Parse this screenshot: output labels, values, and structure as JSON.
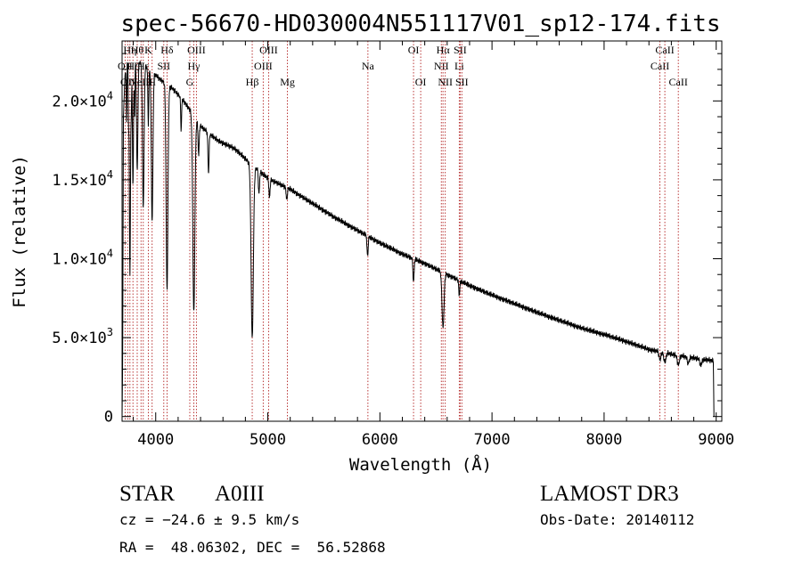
{
  "chart_data": {
    "type": "line",
    "title": "spec-56670-HD030004N551117V01_sp12-174.fits",
    "xlabel": "Wavelength (Å)",
    "ylabel": "Flux (relative)",
    "xlim": [
      3700,
      9050
    ],
    "ylim": [
      -300,
      23800
    ],
    "x_ticks": [
      {
        "value": 4000,
        "label": "4000"
      },
      {
        "value": 5000,
        "label": "5000"
      },
      {
        "value": 6000,
        "label": "6000"
      },
      {
        "value": 7000,
        "label": "7000"
      },
      {
        "value": 8000,
        "label": "8000"
      },
      {
        "value": 9000,
        "label": "9000"
      }
    ],
    "y_ticks": [
      {
        "value": 0,
        "base": "0",
        "exp": ""
      },
      {
        "value": 5000,
        "base": "5.0×10",
        "exp": "3"
      },
      {
        "value": 10000,
        "base": "1.0×10",
        "exp": "4"
      },
      {
        "value": 15000,
        "base": "1.5×10",
        "exp": "4"
      },
      {
        "value": 20000,
        "base": "2.0×10",
        "exp": "4"
      }
    ],
    "continuum": [
      [
        3700,
        0
      ],
      [
        3705,
        3200
      ],
      [
        3712,
        19000
      ],
      [
        3725,
        21500
      ],
      [
        3760,
        23000
      ],
      [
        3850,
        22500
      ],
      [
        3950,
        22000
      ],
      [
        4050,
        21300
      ],
      [
        4150,
        20800
      ],
      [
        4250,
        20000
      ],
      [
        4400,
        18400
      ],
      [
        4550,
        17500
      ],
      [
        4700,
        17000
      ],
      [
        4850,
        16000
      ],
      [
        5000,
        15100
      ],
      [
        5200,
        14400
      ],
      [
        5400,
        13500
      ],
      [
        5600,
        12600
      ],
      [
        5800,
        11800
      ],
      [
        6000,
        11000
      ],
      [
        6200,
        10300
      ],
      [
        6400,
        9700
      ],
      [
        6600,
        9000
      ],
      [
        6800,
        8300
      ],
      [
        7000,
        7700
      ],
      [
        7200,
        7150
      ],
      [
        7400,
        6600
      ],
      [
        7600,
        6100
      ],
      [
        7800,
        5600
      ],
      [
        8000,
        5200
      ],
      [
        8200,
        4750
      ],
      [
        8400,
        4250
      ],
      [
        8600,
        3950
      ],
      [
        8800,
        3700
      ],
      [
        8960,
        3550
      ],
      [
        8975,
        3500
      ],
      [
        8980,
        0
      ]
    ],
    "absorption": [
      [
        3770,
        14000,
        5
      ],
      [
        3797,
        8000,
        5
      ],
      [
        3835,
        7000,
        6
      ],
      [
        3889,
        9000,
        7
      ],
      [
        3934,
        3500,
        4
      ],
      [
        3968,
        9500,
        7
      ],
      [
        4101,
        13000,
        8
      ],
      [
        4227,
        2000,
        4
      ],
      [
        4340,
        12500,
        9
      ],
      [
        4383,
        2000,
        5
      ],
      [
        4471,
        2500,
        5
      ],
      [
        4861,
        11000,
        10
      ],
      [
        4921,
        1500,
        5
      ],
      [
        5015,
        1200,
        5
      ],
      [
        5169,
        800,
        5
      ],
      [
        5890,
        1300,
        5
      ],
      [
        6300,
        1500,
        5
      ],
      [
        6563,
        3500,
        9
      ],
      [
        6708,
        900,
        5
      ],
      [
        8498,
        500,
        8
      ],
      [
        8542,
        600,
        9
      ],
      [
        8662,
        600,
        9
      ],
      [
        8750,
        400,
        8
      ],
      [
        8863,
        400,
        8
      ]
    ],
    "noise_amplitude": 150,
    "line_markers": [
      {
        "wavelength": 3727,
        "label": "OII",
        "row": 1
      },
      {
        "wavelength": 3750,
        "label": "OII",
        "row": 2
      },
      {
        "wavelength": 3770,
        "label": "Hη",
        "row": 0
      },
      {
        "wavelength": 3797,
        "label": "Hζ",
        "row": 1
      },
      {
        "wavelength": 3835,
        "label": "Hθ",
        "row": 0
      },
      {
        "wavelength": 3869,
        "label": "NeIII",
        "row": 2
      },
      {
        "wavelength": 3889,
        "label": "Hε",
        "row": 1
      },
      {
        "wavelength": 3934,
        "label": "K",
        "row": 0
      },
      {
        "wavelength": 3968,
        "label": "H",
        "row": 2
      },
      {
        "wavelength": 4072,
        "label": "SII",
        "row": 1
      },
      {
        "wavelength": 4101,
        "label": "Hδ",
        "row": 0
      },
      {
        "wavelength": 4304,
        "label": "G",
        "row": 2
      },
      {
        "wavelength": 4340,
        "label": "Hγ",
        "row": 1
      },
      {
        "wavelength": 4363,
        "label": "OIII",
        "row": 0
      },
      {
        "wavelength": 4861,
        "label": "Hβ",
        "row": 2
      },
      {
        "wavelength": 4959,
        "label": "OIII",
        "row": 1
      },
      {
        "wavelength": 5007,
        "label": "OIII",
        "row": 0
      },
      {
        "wavelength": 5175,
        "label": "Mg",
        "row": 2
      },
      {
        "wavelength": 5893,
        "label": "Na",
        "row": 1
      },
      {
        "wavelength": 6300,
        "label": "OI",
        "row": 0
      },
      {
        "wavelength": 6364,
        "label": "OI",
        "row": 2
      },
      {
        "wavelength": 6548,
        "label": "NII",
        "row": 1
      },
      {
        "wavelength": 6563,
        "label": "Hα",
        "row": 0
      },
      {
        "wavelength": 6583,
        "label": "NII",
        "row": 2
      },
      {
        "wavelength": 6708,
        "label": "Li",
        "row": 1
      },
      {
        "wavelength": 6716,
        "label": "SII",
        "row": 0
      },
      {
        "wavelength": 6731,
        "label": "SII",
        "row": 2
      },
      {
        "wavelength": 8498,
        "label": "CaII",
        "row": 1
      },
      {
        "wavelength": 8542,
        "label": "CaII",
        "row": 0
      },
      {
        "wavelength": 8662,
        "label": "CaII",
        "row": 2
      }
    ],
    "marker_color": "#b22222",
    "line_color": "#000000"
  },
  "info": {
    "object_class": "STAR",
    "subclass": "A0III",
    "survey": "LAMOST DR3",
    "redshift": "cz = −24.6 ± 9.5 km/s",
    "obs_date": "Obs-Date: 20140112",
    "coords": "RA =  48.06302, DEC =  56.52868"
  }
}
